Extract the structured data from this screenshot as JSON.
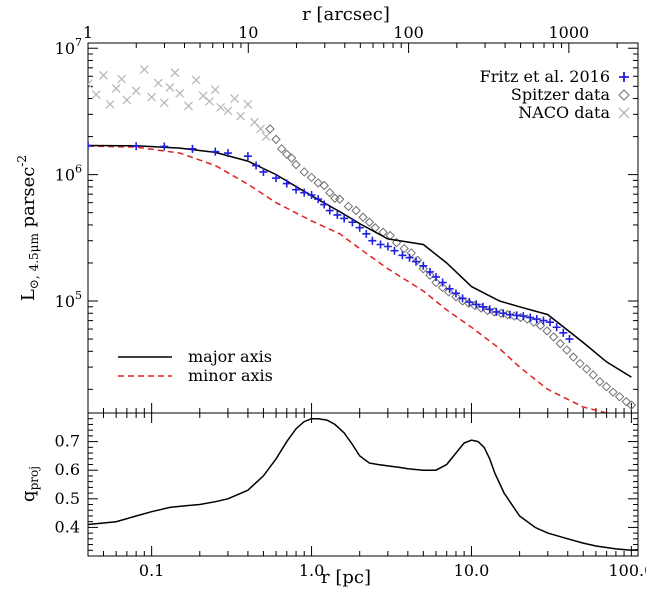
{
  "chart_data": [
    {
      "type": "scatter",
      "xscale": "log",
      "yscale": "log",
      "xlabel_bottom": "r [pc]",
      "xlabel_top": "r [arcsec]",
      "ylabel": "L⊙, 4.5μm parsec⁻²",
      "ylabel_parts": {
        "base": "L",
        "sun": "⊙",
        "sub": ", 4.5μm",
        "unit": " parsec",
        "sup": "-2"
      },
      "xlim": [
        0.04,
        110
      ],
      "ylim": [
        13000,
        11000000
      ],
      "top_xlim_arcsec": [
        1,
        2700
      ],
      "top_ticks_arcsec": [
        1,
        10,
        100,
        1000
      ],
      "top_tick_labels": [
        "1",
        "10",
        "100",
        "1000"
      ],
      "yticks": [
        10000000,
        1000000,
        100000
      ],
      "ytick_labels": [
        {
          "base": "10",
          "exp": "7"
        },
        {
          "base": "10",
          "exp": "6"
        },
        {
          "base": "10",
          "exp": "5"
        }
      ],
      "legend_upper": {
        "position": "top-right",
        "entries": [
          {
            "label": "Fritz et al. 2016",
            "marker": "+",
            "color": "#1f1fe0"
          },
          {
            "label": "Spitzer data",
            "marker": "◇",
            "color": "#707070"
          },
          {
            "label": "NACO data",
            "marker": "×",
            "color": "#b9b9b9"
          }
        ]
      },
      "legend_lower": {
        "position": "bottom-left",
        "entries": [
          {
            "label": "major axis",
            "style": "solid",
            "color": "#000000"
          },
          {
            "label": "minor axis",
            "style": "dashed",
            "color": "#e0201f"
          }
        ]
      },
      "series": [
        {
          "name": "major axis",
          "kind": "line",
          "color": "#000000",
          "dash": "none",
          "x": [
            0.04,
            0.08,
            0.15,
            0.25,
            0.4,
            0.6,
            1.0,
            1.5,
            2.0,
            3.0,
            5.0,
            7.0,
            10,
            15,
            20,
            30,
            50,
            70,
            100
          ],
          "y": [
            1700000,
            1690000,
            1620000,
            1500000,
            1280000,
            1000000,
            680000,
            510000,
            410000,
            310000,
            280000,
            200000,
            130000,
            100000,
            90000,
            78000,
            47000,
            33000,
            25000
          ]
        },
        {
          "name": "minor axis",
          "kind": "line",
          "color": "#e0201f",
          "dash": "6,4",
          "x": [
            0.04,
            0.08,
            0.15,
            0.25,
            0.4,
            0.6,
            1.0,
            1.5,
            2.0,
            3.0,
            5.0,
            7.0,
            10,
            15,
            20,
            30,
            50,
            70
          ],
          "y": [
            1680000,
            1650000,
            1480000,
            1180000,
            840000,
            600000,
            430000,
            340000,
            260000,
            180000,
            120000,
            85000,
            62000,
            42000,
            30000,
            20000,
            14500,
            13000
          ]
        },
        {
          "name": "Fritz et al. 2016",
          "kind": "plus",
          "color": "#1f1fe0",
          "x": [
            0.04,
            0.08,
            0.12,
            0.18,
            0.25,
            0.3,
            0.4,
            0.45,
            0.5,
            0.6,
            0.7,
            0.8,
            0.9,
            1.0,
            1.1,
            1.2,
            1.3,
            1.45,
            1.6,
            1.8,
            2.0,
            2.2,
            2.4,
            2.7,
            3.0,
            3.3,
            3.7,
            4.1,
            4.5,
            5.0,
            5.5,
            6.0,
            6.6,
            7.3,
            8.0,
            8.8,
            9.7,
            10.7,
            11.8,
            13.0,
            14.3,
            15.8,
            17.4,
            19.2,
            21.1,
            23.3,
            25.6,
            28.2,
            31.0,
            34.1,
            37.5,
            41.0
          ],
          "y": [
            1700000,
            1680000,
            1670000,
            1600000,
            1520000,
            1480000,
            1400000,
            1180000,
            1050000,
            940000,
            850000,
            760000,
            720000,
            690000,
            640000,
            580000,
            520000,
            480000,
            450000,
            420000,
            380000,
            340000,
            300000,
            280000,
            270000,
            250000,
            230000,
            220000,
            205000,
            190000,
            170000,
            155000,
            140000,
            125000,
            115000,
            105000,
            98000,
            94000,
            90000,
            86000,
            82000,
            80000,
            78000,
            77000,
            76000,
            74000,
            72000,
            70000,
            68000,
            62000,
            56000,
            50000
          ]
        },
        {
          "name": "Spitzer data",
          "kind": "diamond",
          "color": "#707070",
          "x": [
            0.55,
            0.6,
            0.65,
            0.7,
            0.75,
            0.8,
            0.9,
            1.0,
            1.1,
            1.2,
            1.3,
            1.4,
            1.5,
            1.7,
            1.9,
            2.1,
            2.3,
            2.5,
            2.8,
            3.1,
            3.4,
            3.8,
            4.2,
            4.6,
            5.0,
            5.5,
            6.0,
            6.6,
            7.2,
            8.0,
            8.8,
            9.6,
            10.5,
            11.5,
            12.6,
            13.9,
            15.3,
            16.8,
            18.5,
            20.3,
            22.3,
            24.5,
            27.0,
            29.7,
            32.6,
            35.9,
            39.5,
            43.4,
            47.7,
            52.5,
            57.7,
            63.5,
            69.8,
            76.8,
            84.4,
            92.9,
            100
          ],
          "y": [
            2300000,
            1900000,
            1600000,
            1450000,
            1350000,
            1200000,
            1050000,
            950000,
            860000,
            820000,
            720000,
            650000,
            640000,
            560000,
            520000,
            460000,
            420000,
            380000,
            350000,
            330000,
            290000,
            260000,
            240000,
            210000,
            180000,
            160000,
            140000,
            128000,
            118000,
            108000,
            100000,
            96000,
            92000,
            88000,
            84000,
            82000,
            80000,
            78000,
            76000,
            74000,
            72000,
            68000,
            64000,
            58000,
            52000,
            46000,
            41000,
            36000,
            32000,
            29000,
            26000,
            23000,
            21000,
            19000,
            17500,
            16000,
            15000
          ]
        },
        {
          "name": "NACO data",
          "kind": "cross",
          "color": "#b9b9b9",
          "x": [
            0.04,
            0.045,
            0.05,
            0.055,
            0.06,
            0.065,
            0.07,
            0.08,
            0.09,
            0.1,
            0.11,
            0.12,
            0.13,
            0.14,
            0.15,
            0.17,
            0.19,
            0.21,
            0.23,
            0.25,
            0.27,
            0.3,
            0.33,
            0.36,
            0.4,
            0.44,
            0.48,
            0.52
          ],
          "y": [
            5200000,
            4300000,
            6100000,
            3600000,
            4800000,
            5700000,
            3900000,
            4600000,
            6800000,
            4100000,
            5300000,
            3700000,
            4900000,
            6400000,
            4400000,
            3500000,
            5600000,
            4200000,
            3800000,
            4700000,
            3400000,
            3200000,
            4000000,
            2900000,
            3600000,
            2600000,
            2300000,
            2000000
          ]
        }
      ]
    },
    {
      "type": "line",
      "xscale": "log",
      "xlabel": "r [pc]",
      "ylabel": "q_proj",
      "ylabel_parts": {
        "base": "q",
        "sub": "proj"
      },
      "xlim": [
        0.04,
        110
      ],
      "ylim": [
        0.3,
        0.8
      ],
      "xticks": [
        0.1,
        1.0,
        10.0,
        100.0
      ],
      "xtick_labels": [
        "0.1",
        "1.0",
        "10.0",
        "100.0"
      ],
      "yticks": [
        0.4,
        0.5,
        0.6,
        0.7
      ],
      "ytick_labels": [
        "0.4",
        "0.5",
        "0.6",
        "0.7"
      ],
      "series": [
        {
          "color": "#000000",
          "x": [
            0.04,
            0.06,
            0.08,
            0.1,
            0.13,
            0.16,
            0.2,
            0.25,
            0.3,
            0.4,
            0.5,
            0.6,
            0.7,
            0.8,
            0.9,
            1.0,
            1.1,
            1.25,
            1.4,
            1.6,
            1.8,
            2.0,
            2.3,
            2.6,
            3.0,
            3.5,
            4.0,
            5.0,
            6.0,
            7.0,
            8.0,
            9.0,
            10.0,
            11.0,
            12.0,
            13.0,
            14.0,
            16.0,
            20.0,
            25.0,
            30.0,
            40.0,
            50.0,
            60.0,
            80.0,
            100.0,
            110.0
          ],
          "y": [
            0.41,
            0.42,
            0.44,
            0.455,
            0.47,
            0.475,
            0.48,
            0.49,
            0.5,
            0.53,
            0.58,
            0.64,
            0.7,
            0.745,
            0.77,
            0.78,
            0.78,
            0.775,
            0.76,
            0.73,
            0.69,
            0.65,
            0.625,
            0.62,
            0.615,
            0.61,
            0.605,
            0.6,
            0.6,
            0.62,
            0.66,
            0.695,
            0.705,
            0.7,
            0.68,
            0.64,
            0.59,
            0.52,
            0.44,
            0.4,
            0.38,
            0.36,
            0.345,
            0.335,
            0.325,
            0.32,
            0.322
          ]
        }
      ]
    }
  ]
}
